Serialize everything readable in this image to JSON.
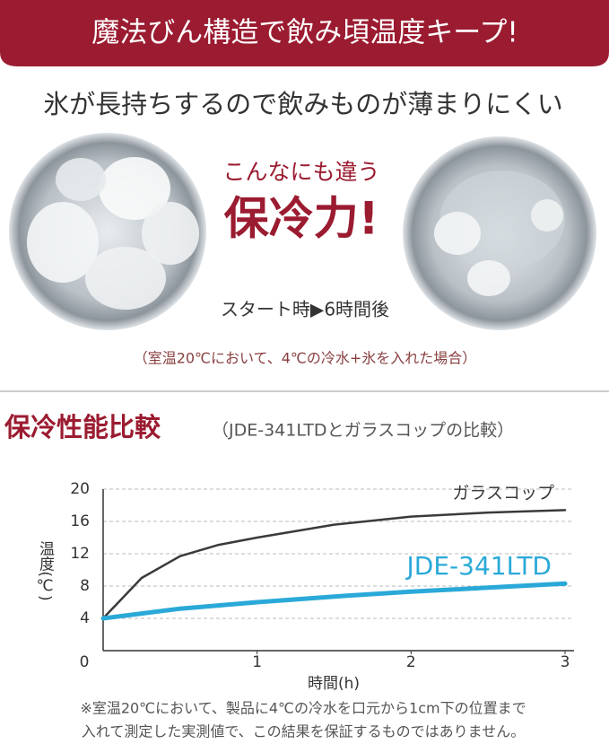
{
  "banner": "魔法びん構造で飲み頃温度キープ!",
  "subtitle": "氷が長持ちするので飲みものが薄まりにくい",
  "promo": {
    "line1": "こんなにも違う",
    "line2": "保冷力!",
    "compare": "スタート時▶6時間後",
    "condition": "（室温20℃において、4℃の冷水+氷を入れた場合）"
  },
  "section": {
    "title": "保冷性能比較",
    "subtitle": "（JDE-341LTDとガラスコップの比較）"
  },
  "chart_data": {
    "type": "line",
    "y_label": "温度(℃)",
    "x_label": "時間(h)",
    "x": [
      0,
      0.25,
      0.5,
      0.75,
      1,
      1.5,
      2,
      2.5,
      3
    ],
    "series": [
      {
        "name": "ガラスコップ",
        "color": "#3a3a3a",
        "values": [
          4,
          9,
          11.7,
          13.1,
          14,
          15.6,
          16.6,
          17.1,
          17.4
        ]
      },
      {
        "name": "JDE-341LTD",
        "color": "#2aa9d8",
        "values": [
          4,
          4.6,
          5.2,
          5.6,
          6.0,
          6.7,
          7.3,
          7.8,
          8.3
        ]
      }
    ],
    "xlim": [
      0,
      3
    ],
    "xticks": [
      0,
      1,
      2,
      3
    ],
    "ylim": [
      0,
      20
    ],
    "yticks": [
      0,
      4,
      8,
      12,
      16,
      20
    ],
    "grid": true
  },
  "footnote": [
    "※室温20℃において、製品に4℃の冷水を口元から1cm下の位置まで",
    "入れて測定した実測値で、この結果を保証するものではありません。"
  ]
}
